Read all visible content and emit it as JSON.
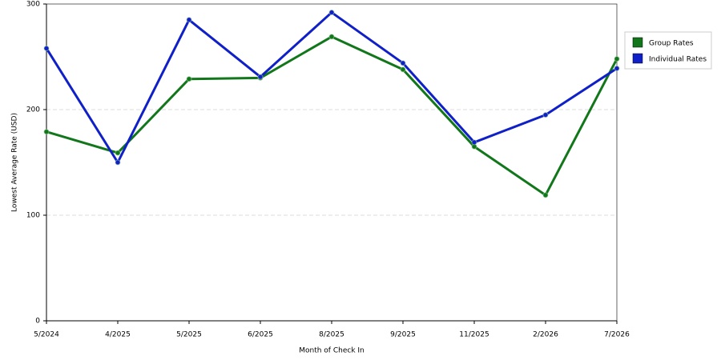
{
  "chart_data": {
    "type": "line",
    "x_label": "Month of Check In",
    "y_label": "Lowest Average Rate (USD)",
    "categories": [
      "5/2024",
      "4/2025",
      "5/2025",
      "6/2025",
      "8/2025",
      "9/2025",
      "11/2025",
      "2/2026",
      "7/2026"
    ],
    "series": [
      {
        "name": "Group Rates",
        "color": "#11771a",
        "values": [
          179,
          159,
          229,
          230,
          269,
          238,
          165,
          119,
          248
        ]
      },
      {
        "name": "Individual Rates",
        "color": "#1020c8",
        "values": [
          258,
          150,
          285,
          231,
          292,
          244,
          169,
          195,
          239
        ]
      }
    ],
    "ylim": [
      0,
      300
    ],
    "yticks": [
      0,
      100,
      200,
      300
    ],
    "grid": true
  }
}
